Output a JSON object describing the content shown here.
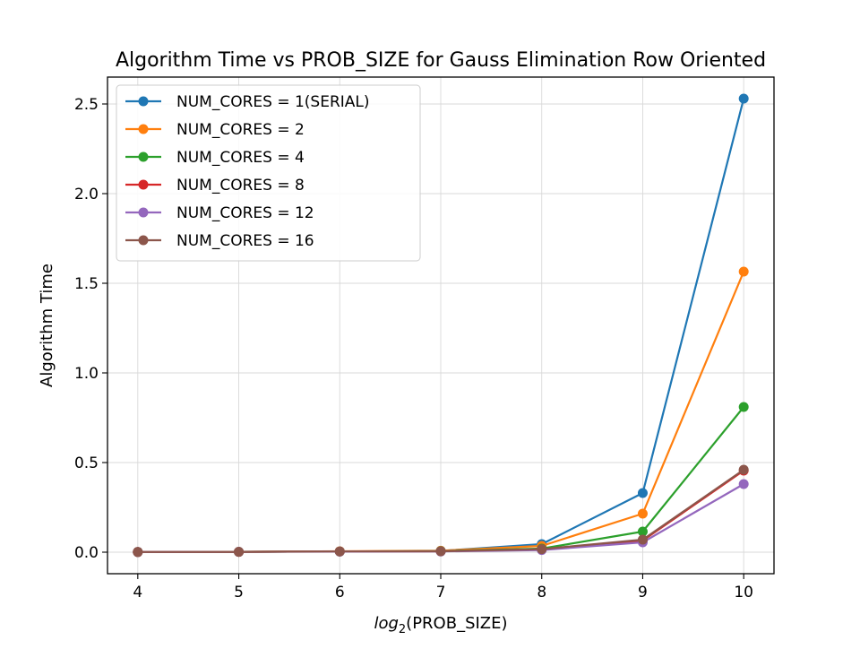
{
  "chart_data": {
    "type": "line",
    "title": "Algorithm Time vs PROB_SIZE for Gauss Elimination Row Oriented",
    "xlabel": "log2(PROB_SIZE)",
    "xlabel_prefix": "log",
    "xlabel_subscript": "2",
    "xlabel_suffix": "(PROB_SIZE)",
    "ylabel": "Algorithm Time",
    "xlim": [
      3.7,
      10.3
    ],
    "ylim": [
      -0.12,
      2.65
    ],
    "xticks": [
      4,
      5,
      6,
      7,
      8,
      9,
      10
    ],
    "yticks": [
      0.0,
      0.5,
      1.0,
      1.5,
      2.0,
      2.5
    ],
    "ytick_labels": [
      "0.0",
      "0.5",
      "1.0",
      "1.5",
      "2.0",
      "2.5"
    ],
    "grid": true,
    "legend_position": "upper-left",
    "x": [
      4,
      5,
      6,
      7,
      8,
      9,
      10
    ],
    "series": [
      {
        "name": "NUM_CORES = 1(SERIAL)",
        "color": "#1f77b4",
        "values": [
          0.001,
          0.002,
          0.004,
          0.007,
          0.045,
          0.33,
          2.53
        ]
      },
      {
        "name": "NUM_CORES = 2",
        "color": "#ff7f0e",
        "values": [
          0.001,
          0.002,
          0.005,
          0.008,
          0.035,
          0.215,
          1.565
        ]
      },
      {
        "name": "NUM_CORES = 4",
        "color": "#2ca02c",
        "values": [
          0.001,
          0.002,
          0.004,
          0.006,
          0.02,
          0.115,
          0.81
        ]
      },
      {
        "name": "NUM_CORES = 8",
        "color": "#d62728",
        "values": [
          0.001,
          0.002,
          0.004,
          0.005,
          0.016,
          0.065,
          0.455
        ]
      },
      {
        "name": "NUM_CORES = 12",
        "color": "#9467bd",
        "values": [
          0.001,
          0.002,
          0.003,
          0.004,
          0.012,
          0.055,
          0.38
        ]
      },
      {
        "name": "NUM_CORES = 16",
        "color": "#8c564b",
        "values": [
          0.001,
          0.002,
          0.004,
          0.005,
          0.017,
          0.07,
          0.46
        ]
      }
    ]
  }
}
